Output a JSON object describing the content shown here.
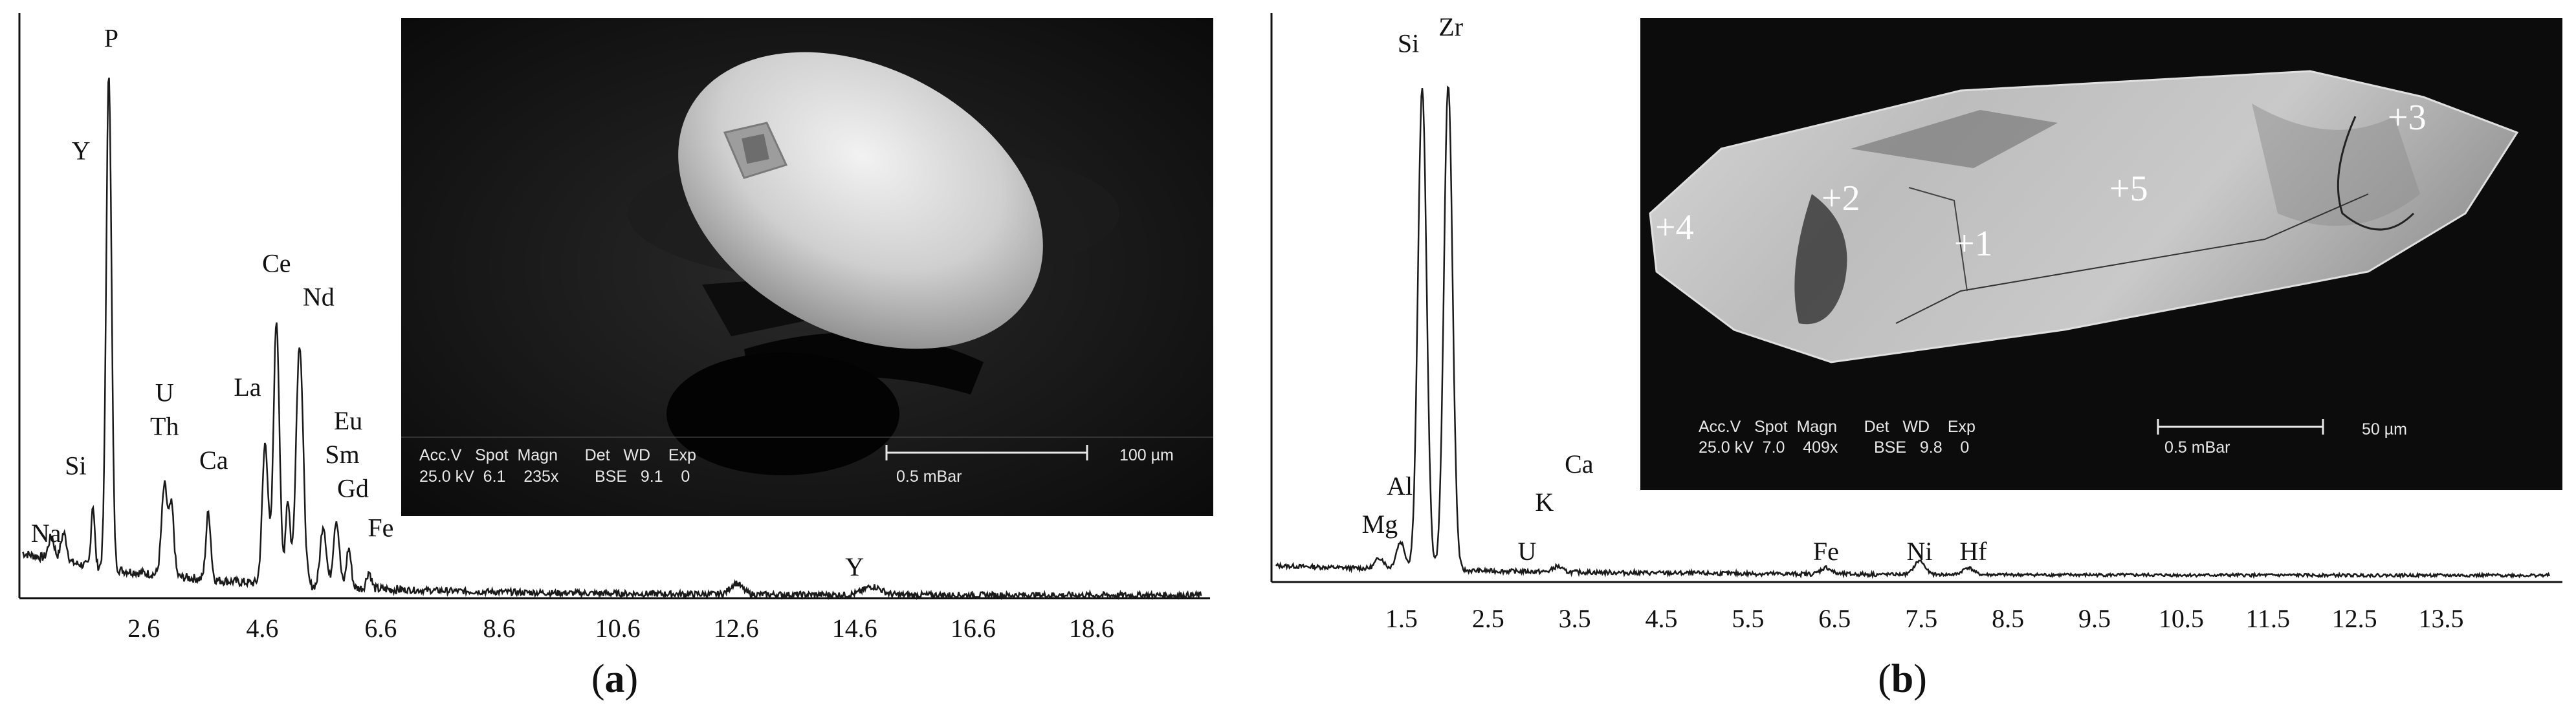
{
  "chart_data": [
    {
      "id": "a",
      "type": "line",
      "title": "",
      "xlabel": "",
      "ylabel": "",
      "xlim": [
        0.5,
        20.6
      ],
      "ylim": [
        0,
        100
      ],
      "xticks": [
        "2.6",
        "4.6",
        "6.6",
        "8.6",
        "10.6",
        "12.6",
        "14.6",
        "16.6",
        "18.6"
      ],
      "xtick_values": [
        2.6,
        4.6,
        6.6,
        8.6,
        10.6,
        12.6,
        14.6,
        16.6,
        18.6
      ],
      "baseline": 8,
      "tail": 0.5,
      "peaks": [
        {
          "x": 1.04,
          "h": 4,
          "w": 0.05
        },
        {
          "x": 1.25,
          "h": 5,
          "w": 0.05
        },
        {
          "x": 1.74,
          "h": 11,
          "w": 0.03
        },
        {
          "x": 2.01,
          "h": 88,
          "w": 0.045
        },
        {
          "x": 2.95,
          "h": 16,
          "w": 0.05
        },
        {
          "x": 3.07,
          "h": 12,
          "w": 0.04
        },
        {
          "x": 3.69,
          "h": 12,
          "w": 0.04
        },
        {
          "x": 4.65,
          "h": 25,
          "w": 0.05
        },
        {
          "x": 4.84,
          "h": 47,
          "w": 0.05
        },
        {
          "x": 5.03,
          "h": 15,
          "w": 0.04
        },
        {
          "x": 5.23,
          "h": 43,
          "w": 0.06
        },
        {
          "x": 5.63,
          "h": 11,
          "w": 0.05
        },
        {
          "x": 5.85,
          "h": 12,
          "w": 0.05
        },
        {
          "x": 6.06,
          "h": 7,
          "w": 0.04
        },
        {
          "x": 6.4,
          "h": 3,
          "w": 0.04
        },
        {
          "x": 12.6,
          "h": 2,
          "w": 0.1
        },
        {
          "x": 14.9,
          "h": 1.5,
          "w": 0.15
        }
      ],
      "annotations": [
        {
          "label": "Na",
          "x": 0.95,
          "y": 10
        },
        {
          "label": "Si",
          "x": 1.45,
          "y": 22
        },
        {
          "label": "Y",
          "x": 1.54,
          "y": 78
        },
        {
          "label": "P",
          "x": 2.05,
          "y": 98
        },
        {
          "label": "U",
          "x": 2.95,
          "y": 35
        },
        {
          "label": "Th",
          "x": 2.95,
          "y": 29
        },
        {
          "label": "Ca",
          "x": 3.78,
          "y": 23
        },
        {
          "label": "La",
          "x": 4.35,
          "y": 36
        },
        {
          "label": "Ce",
          "x": 4.84,
          "y": 58
        },
        {
          "label": "Nd",
          "x": 5.55,
          "y": 52
        },
        {
          "label": "Eu",
          "x": 6.05,
          "y": 30
        },
        {
          "label": "Sm",
          "x": 5.95,
          "y": 24
        },
        {
          "label": "Gd",
          "x": 6.13,
          "y": 18
        },
        {
          "label": "Fe",
          "x": 6.6,
          "y": 11
        },
        {
          "label": "Y",
          "x": 14.6,
          "y": 4
        }
      ],
      "caption": {
        "open": "(",
        "letter": "a",
        "close": ")"
      }
    },
    {
      "id": "b",
      "type": "line",
      "title": "",
      "xlabel": "",
      "ylabel": "",
      "xlim": [
        0,
        14.9
      ],
      "ylim": [
        0,
        100
      ],
      "xticks": [
        "1.5",
        "2.5",
        "3.5",
        "4.5",
        "5.5",
        "6.5",
        "7.5",
        "8.5",
        "9.5",
        "10.5",
        "11.5",
        "12.5",
        "13.5"
      ],
      "xtick_values": [
        1.5,
        2.5,
        3.5,
        4.5,
        5.5,
        6.5,
        7.5,
        8.5,
        9.5,
        10.5,
        11.5,
        12.5,
        13.5
      ],
      "baseline": 3,
      "tail": 1.2,
      "peaks": [
        {
          "x": 1.25,
          "h": 2,
          "w": 0.05
        },
        {
          "x": 1.49,
          "h": 5,
          "w": 0.05
        },
        {
          "x": 1.74,
          "h": 88,
          "w": 0.05
        },
        {
          "x": 2.04,
          "h": 89,
          "w": 0.05
        },
        {
          "x": 3.3,
          "h": 1,
          "w": 0.05
        },
        {
          "x": 6.4,
          "h": 1.2,
          "w": 0.06
        },
        {
          "x": 7.48,
          "h": 2.5,
          "w": 0.06
        },
        {
          "x": 8.04,
          "h": 1.3,
          "w": 0.06
        }
      ],
      "annotations": [
        {
          "label": "Mg",
          "x": 1.25,
          "y": 9
        },
        {
          "label": "Al",
          "x": 1.48,
          "y": 16
        },
        {
          "label": "Si",
          "x": 1.58,
          "y": 97
        },
        {
          "label": "Zr",
          "x": 2.07,
          "y": 100
        },
        {
          "label": "U",
          "x": 2.95,
          "y": 4
        },
        {
          "label": "K",
          "x": 3.15,
          "y": 13
        },
        {
          "label": "Ca",
          "x": 3.55,
          "y": 20
        },
        {
          "label": "Fe",
          "x": 6.4,
          "y": 4
        },
        {
          "label": "Ni",
          "x": 7.48,
          "y": 4
        },
        {
          "label": "Hf",
          "x": 8.1,
          "y": 4
        }
      ],
      "caption": {
        "open": "(",
        "letter": "b",
        "close": ")"
      }
    }
  ],
  "sem_a": {
    "row1": "Acc.V   Spot  Magn      Det   WD    Exp",
    "row2": "25.0 kV  6.1    235x        BSE   9.1    0",
    "vacuum": "0.5 mBar",
    "scale": "100 µm"
  },
  "sem_b": {
    "row1": "Acc.V   Spot  Magn      Det   WD    Exp",
    "row2": "25.0 kV  7.0    409x        BSE   9.8    0",
    "vacuum": "0.5 mBar",
    "scale": "50 µm",
    "spots": [
      {
        "label": "+1"
      },
      {
        "label": "+2"
      },
      {
        "label": "+3"
      },
      {
        "label": "+4"
      },
      {
        "label": "+5"
      }
    ]
  },
  "colors": {
    "line": "#1a1a1a",
    "sem_bg": "#0d0d0d"
  }
}
